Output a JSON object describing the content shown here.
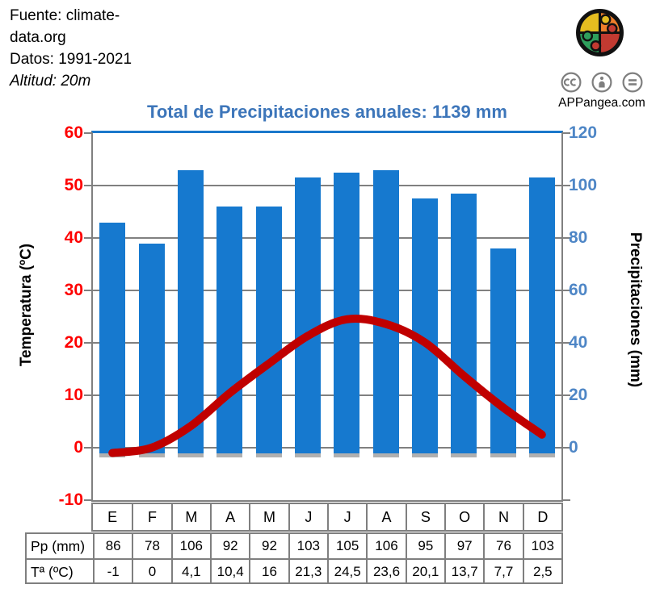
{
  "attribution": {
    "fuente_line1": "Fuente: climate-",
    "fuente_line2": "data.org",
    "datos": "Datos: 1991-2021",
    "altitud": "Altitud: 20m"
  },
  "branding": {
    "site": "APPangea.com",
    "logo_icon": "puzzle-globe-icon",
    "license_icons": [
      "cc-icon",
      "attribution-person-icon",
      "no-derivatives-equals-icon"
    ]
  },
  "chart_title": "Total de Precipitaciones anuales: 1139 mm",
  "chart_data": {
    "type": "bar",
    "subtype": "climograph (bar + smooth line)",
    "title": "Total de Precipitaciones anuales: 1139 mm",
    "categories": [
      "E",
      "F",
      "M",
      "A",
      "M",
      "J",
      "J",
      "A",
      "S",
      "O",
      "N",
      "D"
    ],
    "series": [
      {
        "name": "Pp (mm)",
        "type": "bar",
        "axis": "right",
        "color": "#1679cf",
        "values": [
          86,
          78,
          106,
          92,
          92,
          103,
          105,
          106,
          95,
          97,
          76,
          103
        ]
      },
      {
        "name": "Tª (ºC)",
        "type": "line",
        "axis": "left",
        "color": "#c00000",
        "values": [
          -1,
          0,
          4.1,
          10.4,
          16,
          21.3,
          24.5,
          23.6,
          20.1,
          13.7,
          7.7,
          2.5
        ]
      }
    ],
    "left_axis": {
      "label": "Temperatura (ºC)",
      "min": -10,
      "max": 60,
      "ticks": [
        "60",
        "50",
        "40",
        "30",
        "20",
        "10",
        "0",
        "-10"
      ],
      "tick_color": "#fe0000"
    },
    "right_axis": {
      "label": "Precipitaciones (mm)",
      "min": -20,
      "max": 120,
      "ticks": [
        "120",
        "100",
        "80",
        "60",
        "40",
        "20",
        "0"
      ],
      "tick_color": "#4e86c6"
    },
    "grid": true,
    "legend_position": "none",
    "annual_precipitation_total_mm": 1139
  },
  "table": {
    "months": [
      "E",
      "F",
      "M",
      "A",
      "M",
      "J",
      "J",
      "A",
      "S",
      "O",
      "N",
      "D"
    ],
    "rows": [
      {
        "header": "Pp (mm)",
        "values": [
          "86",
          "78",
          "106",
          "92",
          "92",
          "103",
          "105",
          "106",
          "95",
          "97",
          "76",
          "103"
        ]
      },
      {
        "header": "Tª (ºC)",
        "values": [
          "-1",
          "0",
          "4,1",
          "10,4",
          "16",
          "21,3",
          "24,5",
          "23,6",
          "20,1",
          "13,7",
          "7,7",
          "2,5"
        ]
      }
    ]
  },
  "colors": {
    "bar_blue": "#1679cf",
    "bar_base_gray": "#b0b0b0",
    "line_red": "#c00000",
    "temp_label_red": "#fe0000",
    "precip_label_blue": "#4e86c6",
    "title_blue": "#3d76ba",
    "grid_gray": "#808080",
    "plot_top_border_blue": "#1a78cb",
    "icon_gray": "#7f7f7f",
    "logo_yellow": "#e5bd20",
    "logo_orange": "#ee7e2b",
    "logo_red": "#c23a31",
    "logo_green": "#2f9e5c"
  }
}
